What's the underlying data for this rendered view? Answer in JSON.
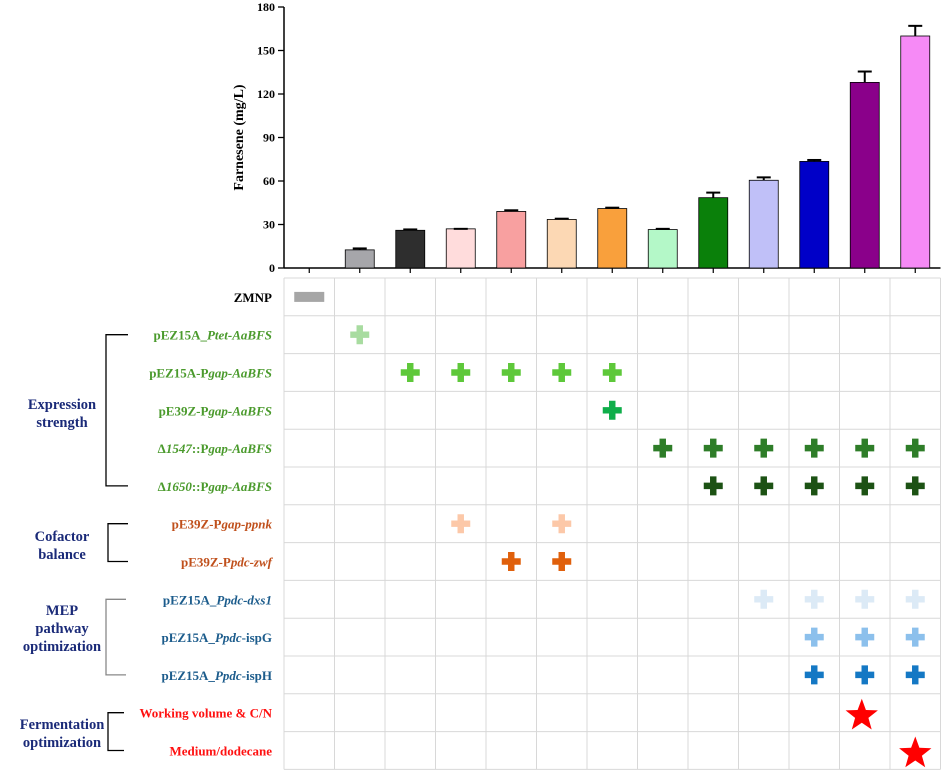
{
  "chart_data": {
    "type": "bar",
    "ylabel": "Farnesene (mg/L)",
    "ylim": [
      0,
      180
    ],
    "yticks": [
      "0",
      "30",
      "60",
      "90",
      "120",
      "150",
      "180"
    ],
    "values": [
      0,
      12.5,
      26,
      27,
      39,
      33.5,
      41,
      26.5,
      48.5,
      60.5,
      73.5,
      128,
      160
    ],
    "errors": [
      0,
      1,
      0.6,
      0,
      0.8,
      0.5,
      0.6,
      0.5,
      3.5,
      2,
      1,
      7.5,
      7
    ],
    "colors": [
      "#aaaaaa",
      "#a6a6aa",
      "#2e2e2e",
      "#ffdcdc",
      "#f8a0a0",
      "#fcd8b4",
      "#f9a03c",
      "#b4f8c8",
      "#0a800a",
      "#c0c0f8",
      "#0000c8",
      "#8a008a",
      "#f68af6"
    ],
    "error_color": "#000000"
  },
  "legend_rows": [
    {
      "label": "ZMNP",
      "color": "#000000",
      "marks": [
        0
      ],
      "symbol": "bar",
      "symbol_color": "#a6a6a6"
    },
    {
      "label": "pEZ15A_Ptet-AaBFS",
      "color": "#4a9a2c",
      "marks": [
        1
      ],
      "symbol": "plus",
      "symbol_color": "#a8dca0"
    },
    {
      "label": "pEZ15A-Pgap-AaBFS",
      "color": "#4a9a2c",
      "marks": [
        2,
        3,
        4,
        5,
        6
      ],
      "symbol": "plus",
      "symbol_color": "#5ec83a"
    },
    {
      "label": "pE39Z-Pgap-AaBFS",
      "color": "#4a9a2c",
      "marks": [
        6
      ],
      "symbol": "plus",
      "symbol_color": "#0fae4a"
    },
    {
      "label": "Δ1547::Pgap-AaBFS",
      "color": "#4a9a2c",
      "marks": [
        7,
        8,
        9,
        10,
        11,
        12
      ],
      "symbol": "plus",
      "symbol_color": "#2e7d28"
    },
    {
      "label": "Δ1650::Pgap-AaBFS",
      "color": "#4a9a2c",
      "marks": [
        8,
        9,
        10,
        11,
        12
      ],
      "symbol": "plus",
      "symbol_color": "#1c5214"
    },
    {
      "label": "pE39Z-Pgap-ppnk",
      "color": "#c0501c",
      "marks": [
        3,
        5
      ],
      "symbol": "plus",
      "symbol_color": "#fcc8a8"
    },
    {
      "label": "pE39Z-Ppdc-zwf",
      "color": "#c0501c",
      "marks": [
        4,
        5
      ],
      "symbol": "plus",
      "symbol_color": "#e0600c"
    },
    {
      "label": "pEZ15A_Ppdc-dxs1",
      "color": "#1c5c8c",
      "marks": [
        9,
        10,
        11,
        12
      ],
      "symbol": "plus",
      "symbol_color": "#dceaf6"
    },
    {
      "label": "pEZ15A_Ppdc-ispG",
      "color": "#1c5c8c",
      "marks": [
        10,
        11,
        12
      ],
      "symbol": "plus",
      "symbol_color": "#8cc0ec"
    },
    {
      "label": "pEZ15A_Ppdc-ispH",
      "color": "#1c5c8c",
      "marks": [
        10,
        11,
        12
      ],
      "symbol": "plus",
      "symbol_color": "#1478c4"
    },
    {
      "label": "Working volume & C/N",
      "color": "#ff1010",
      "marks": [
        11
      ],
      "symbol": "star",
      "symbol_color": "#ff0000"
    },
    {
      "label": "Medium/dodecane",
      "color": "#ff1010",
      "marks": [
        12
      ],
      "symbol": "star",
      "symbol_color": "#ff0000"
    }
  ],
  "groups": [
    {
      "label_lines": [
        "Expression",
        "strength"
      ],
      "color": "#1a2a78"
    },
    {
      "label_lines": [
        "Cofactor",
        "balance"
      ],
      "color": "#1a2a78"
    },
    {
      "label_lines": [
        "MEP",
        "pathway",
        "optimization"
      ],
      "color": "#1a2a78"
    },
    {
      "label_lines": [
        "Fermentation",
        "optimization"
      ],
      "color": "#1a2a78"
    }
  ]
}
